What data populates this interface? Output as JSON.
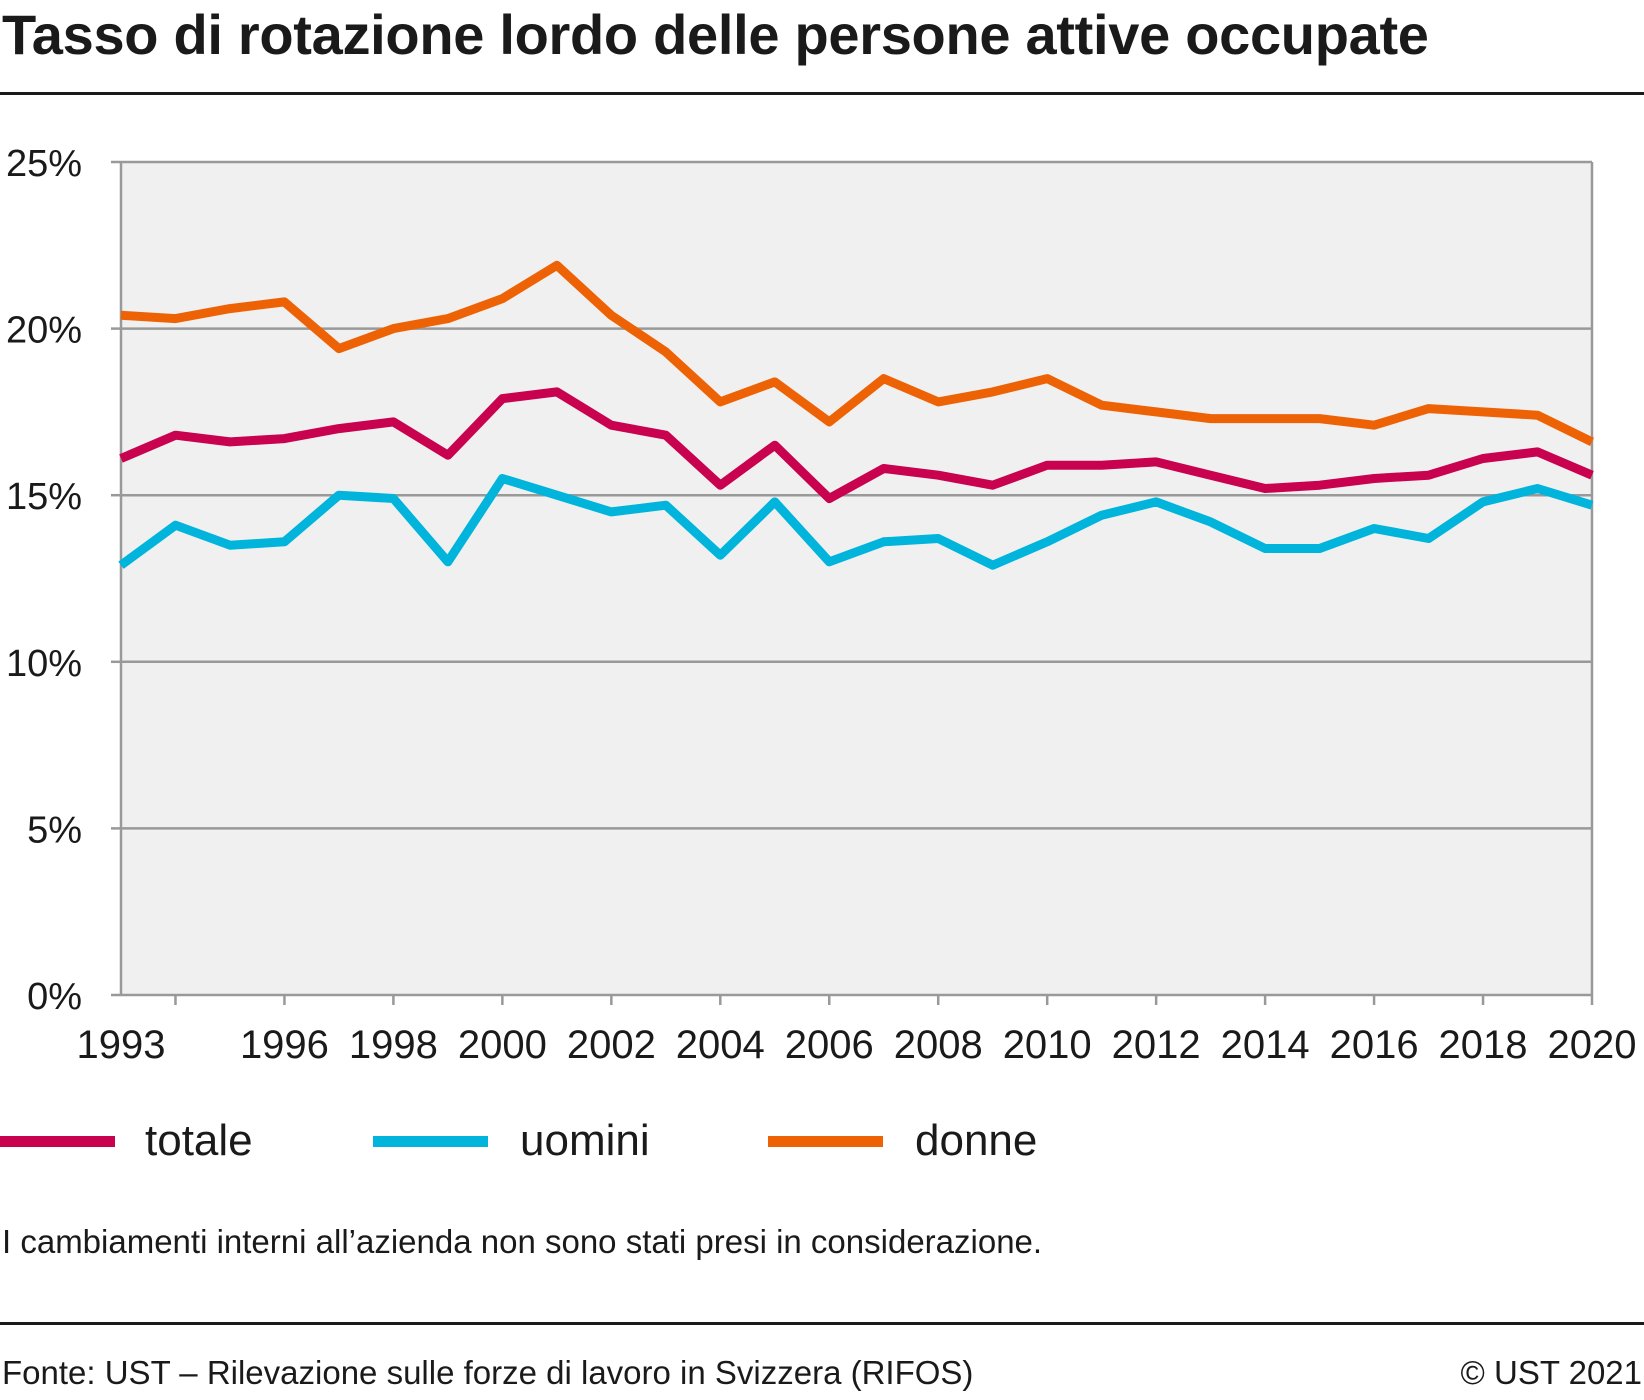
{
  "title": "Tasso di rotazione lordo delle persone attive occupate",
  "note": "I cambiamenti interni all’azienda non sono stati presi in considerazione.",
  "source": "Fonte: UST – Rilevazione sulle forze di lavoro in Svizzera (RIFOS)",
  "copyright": "© UST 2021",
  "colors": {
    "totale": "#c8024f",
    "uomini": "#00b4dc",
    "donne": "#ee6206",
    "plot_background": "#f0f0f0",
    "grid": "#999999"
  },
  "chart_data": {
    "type": "line",
    "x": [
      1993,
      1994,
      1995,
      1996,
      1997,
      1998,
      1999,
      2000,
      2001,
      2002,
      2003,
      2004,
      2005,
      2006,
      2007,
      2008,
      2009,
      2010,
      2011,
      2012,
      2013,
      2014,
      2015,
      2016,
      2017,
      2018,
      2019,
      2020
    ],
    "x_tick_labels": [
      "1993",
      "1996",
      "1998",
      "2000",
      "2002",
      "2004",
      "2006",
      "2008",
      "2010",
      "2012",
      "2014",
      "2016",
      "2018",
      "2020"
    ],
    "x_tick_label_years": [
      1993,
      1996,
      1998,
      2000,
      2002,
      2004,
      2006,
      2008,
      2010,
      2012,
      2014,
      2016,
      2018,
      2020
    ],
    "y_ticks": [
      0,
      5,
      10,
      15,
      20,
      25
    ],
    "y_tick_labels": [
      "0%",
      "5%",
      "10%",
      "15%",
      "20%",
      "25%"
    ],
    "ylim": [
      0,
      25
    ],
    "xlim": [
      1993,
      2020
    ],
    "grid": true,
    "legend_position": "bottom",
    "series": [
      {
        "name": "totale",
        "color": "#c8024f",
        "values": [
          16.1,
          16.8,
          16.6,
          16.7,
          17.0,
          17.2,
          16.2,
          17.9,
          18.1,
          17.1,
          16.8,
          15.3,
          16.5,
          14.9,
          15.8,
          15.6,
          15.3,
          15.9,
          15.9,
          16.0,
          15.6,
          15.2,
          15.3,
          15.5,
          15.6,
          16.1,
          16.3,
          15.6
        ]
      },
      {
        "name": "uomini",
        "color": "#00b4dc",
        "values": [
          12.9,
          14.1,
          13.5,
          13.6,
          15.0,
          14.9,
          13.0,
          15.5,
          15.0,
          14.5,
          14.7,
          13.2,
          14.8,
          13.0,
          13.6,
          13.7,
          12.9,
          13.6,
          14.4,
          14.8,
          14.2,
          13.4,
          13.4,
          14.0,
          13.7,
          14.8,
          15.2,
          14.7
        ]
      },
      {
        "name": "donne",
        "color": "#ee6206",
        "values": [
          20.4,
          20.3,
          20.6,
          20.8,
          19.4,
          20.0,
          20.3,
          20.9,
          21.9,
          20.4,
          19.3,
          17.8,
          18.4,
          17.2,
          18.5,
          17.8,
          18.1,
          18.5,
          17.7,
          17.5,
          17.3,
          17.3,
          17.3,
          17.1,
          17.6,
          17.5,
          17.4,
          16.6
        ]
      }
    ]
  }
}
